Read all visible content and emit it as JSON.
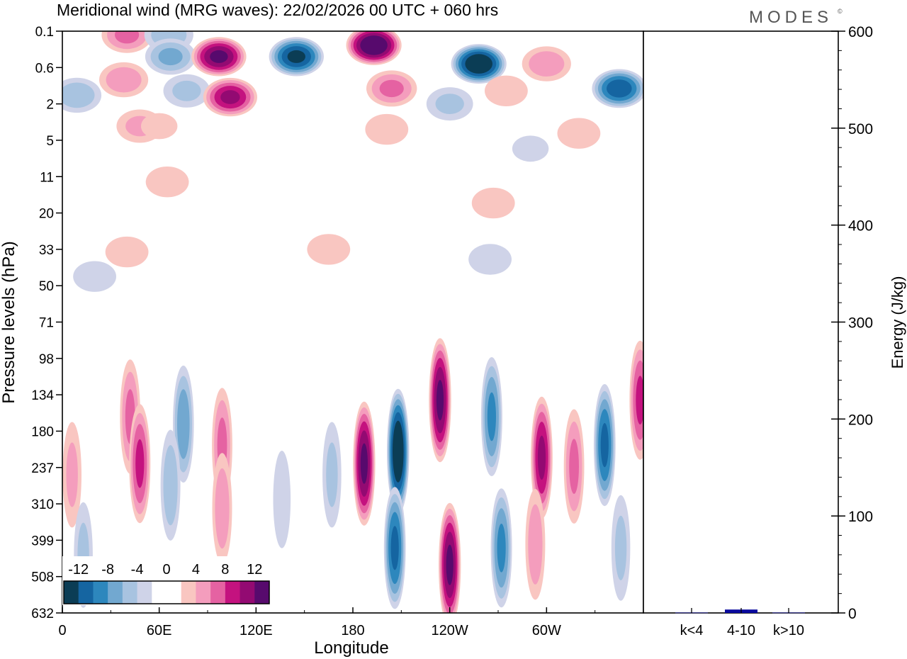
{
  "header": {
    "title": "Meridional wind (MRG waves):  22/02/2026  00 UTC  + 060 hrs",
    "brand": "MODES",
    "brand_mark": "©"
  },
  "colors": {
    "scale": [
      "#0b3d55",
      "#1565a1",
      "#2d87bd",
      "#72a8d0",
      "#a8c3e0",
      "#cfd3e8",
      "#ffffff",
      "#ffffff",
      "#f9c6c1",
      "#f49dbd",
      "#e562a2",
      "#c4127f",
      "#930a72",
      "#570a6d"
    ],
    "energy_bar": "#0a0a9e"
  },
  "chart_data": [
    {
      "type": "heatmap",
      "title": "Meridional wind (MRG waves):  22/02/2026  00 UTC  + 060 hrs",
      "xlabel": "Longitude",
      "ylabel": "Pressure levels (hPa)",
      "x_ticks": [
        "0",
        "60E",
        "120E",
        "180",
        "120W",
        "60W"
      ],
      "x_tick_values_deg": [
        0,
        60,
        120,
        180,
        240,
        300
      ],
      "x_range_deg": [
        0,
        360
      ],
      "y_ticks": [
        "0.1",
        "0.6",
        "2",
        "5",
        "11",
        "20",
        "33",
        "50",
        "71",
        "98",
        "134",
        "180",
        "237",
        "310",
        "399",
        "508",
        "632"
      ],
      "colorbar": {
        "labels": [
          "-12",
          "-8",
          "-4",
          "0",
          "4",
          "8",
          "12"
        ],
        "levels": [
          -14,
          -12,
          -10,
          -8,
          -6,
          -4,
          -2,
          0,
          2,
          4,
          6,
          8,
          10,
          12,
          14
        ]
      },
      "features": [
        {
          "lon": 9,
          "lev": 1.5,
          "value": -5
        },
        {
          "lon": 40,
          "lev": 0.12,
          "value": 6
        },
        {
          "lon": 66,
          "lev": 0.12,
          "value": -5
        },
        {
          "lon": 38,
          "lev": 0.9,
          "value": 5
        },
        {
          "lon": 67,
          "lev": 0.35,
          "value": -6
        },
        {
          "lon": 77,
          "lev": 1.3,
          "value": -4
        },
        {
          "lon": 97,
          "lev": 0.35,
          "value": 12
        },
        {
          "lon": 104,
          "lev": 1.6,
          "value": 10
        },
        {
          "lon": 48,
          "lev": 3.5,
          "value": 4
        },
        {
          "lon": 60,
          "lev": 3.5,
          "value": 2
        },
        {
          "lon": 145,
          "lev": 0.35,
          "value": -12
        },
        {
          "lon": 193,
          "lev": 0.2,
          "value": 14
        },
        {
          "lon": 204,
          "lev": 1.2,
          "value": 6
        },
        {
          "lon": 258,
          "lev": 0.5,
          "value": -14
        },
        {
          "lon": 240,
          "lev": 2,
          "value": -4
        },
        {
          "lon": 300,
          "lev": 0.5,
          "value": 5
        },
        {
          "lon": 345,
          "lev": 1.2,
          "value": -11
        },
        {
          "lon": 275,
          "lev": 1.3,
          "value": 3
        },
        {
          "lon": 201,
          "lev": 3.8,
          "value": 3
        },
        {
          "lon": 320,
          "lev": 4.2,
          "value": 3
        },
        {
          "lon": 290,
          "lev": 6,
          "value": -2
        },
        {
          "lon": 65,
          "lev": 12,
          "value": 3
        },
        {
          "lon": 267,
          "lev": 17,
          "value": 3
        },
        {
          "lon": 40,
          "lev": 34,
          "value": 3
        },
        {
          "lon": 165,
          "lev": 33,
          "value": 3
        },
        {
          "lon": 265,
          "lev": 37,
          "value": -3
        },
        {
          "lon": 20,
          "lev": 45,
          "value": -3
        },
        {
          "lon": 42,
          "lev": 160,
          "value": 6
        },
        {
          "lon": 48,
          "lev": 230,
          "value": 8
        },
        {
          "lon": 75,
          "lev": 170,
          "value": -7
        },
        {
          "lon": 67,
          "lev": 270,
          "value": -5
        },
        {
          "lon": 99,
          "lev": 200,
          "value": 6
        },
        {
          "lon": 99,
          "lev": 320,
          "value": 5
        },
        {
          "lon": 136,
          "lev": 300,
          "value": -3
        },
        {
          "lon": 167,
          "lev": 250,
          "value": -4
        },
        {
          "lon": 187,
          "lev": 230,
          "value": 12
        },
        {
          "lon": 208,
          "lev": 210,
          "value": -14
        },
        {
          "lon": 206,
          "lev": 420,
          "value": -10
        },
        {
          "lon": 234,
          "lev": 140,
          "value": 12
        },
        {
          "lon": 240,
          "lev": 470,
          "value": 12
        },
        {
          "lon": 266,
          "lev": 160,
          "value": -8
        },
        {
          "lon": 272,
          "lev": 420,
          "value": -8
        },
        {
          "lon": 297,
          "lev": 220,
          "value": 10
        },
        {
          "lon": 293,
          "lev": 410,
          "value": 5
        },
        {
          "lon": 317,
          "lev": 235,
          "value": 6
        },
        {
          "lon": 336,
          "lev": 200,
          "value": -10
        },
        {
          "lon": 358,
          "lev": 140,
          "value": 8
        },
        {
          "lon": 6,
          "lev": 250,
          "value": 4
        },
        {
          "lon": 13,
          "lev": 440,
          "value": -4
        },
        {
          "lon": 346,
          "lev": 420,
          "value": -4
        }
      ]
    },
    {
      "type": "bar",
      "ylabel": "Energy (J/kg)",
      "categories": [
        "k<4",
        "4-10",
        "k>10"
      ],
      "values": [
        0.5,
        3.5,
        0.5
      ],
      "ylim": [
        0,
        600
      ],
      "y_ticks": [
        "0",
        "100",
        "200",
        "300",
        "400",
        "500",
        "600"
      ],
      "y_tick_values": [
        0,
        100,
        200,
        300,
        400,
        500,
        600
      ]
    }
  ]
}
